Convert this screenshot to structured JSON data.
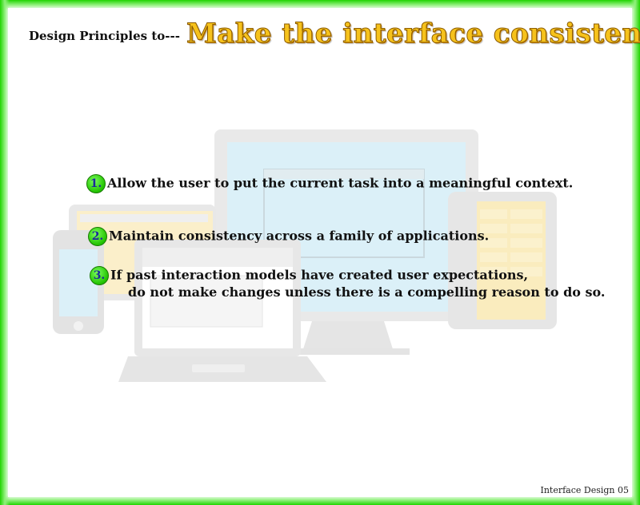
{
  "header": {
    "lead": "Design Principles to---",
    "title": "Make the interface consistent."
  },
  "principles": [
    {
      "number": "1.",
      "text": "Allow the user to put the current task into a meaningful context."
    },
    {
      "number": "2.",
      "text": "Maintain consistency across a family of applications."
    },
    {
      "number": "3.",
      "text": "If past interaction models have created user expectations,",
      "continuation": "do not make changes unless there is a compelling reason to do so."
    }
  ],
  "footer": "Interface Design 05",
  "colors": {
    "border": "#1fd400",
    "title_fill": "#f6c21c",
    "number_badge": "#22c200"
  }
}
